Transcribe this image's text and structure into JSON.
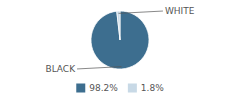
{
  "chart_data": {
    "type": "pie",
    "categories": [
      "BLACK",
      "WHITE"
    ],
    "values": [
      98.2,
      1.8
    ],
    "value_labels": [
      "98.2%",
      "1.8%"
    ],
    "colors": [
      "#3d6e8f",
      "#c8d9e6"
    ],
    "legend": "bottom"
  }
}
